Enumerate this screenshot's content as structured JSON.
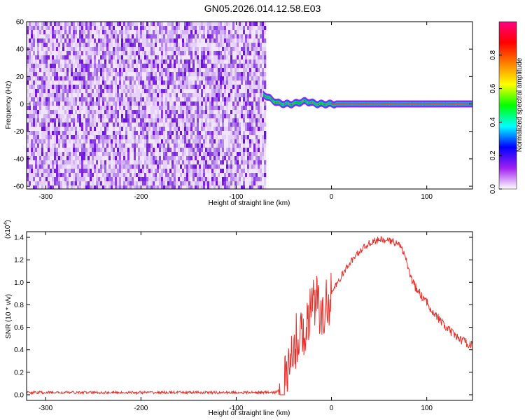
{
  "title": "GN05.2026.014.12.58.E03",
  "chart_data": [
    {
      "type": "heatmap",
      "xlabel": "Height of straight line (km)",
      "ylabel": "Frequency (Hz)",
      "xlim": [
        -320,
        148
      ],
      "ylim": [
        -62,
        60
      ],
      "xticks": [
        -300,
        -200,
        -100,
        0,
        100
      ],
      "yticks": [
        -60,
        -40,
        -20,
        0,
        20,
        40,
        60
      ],
      "noise_region_x": [
        -320,
        -70
      ],
      "tonal_line": {
        "x": [
          -72,
          -65,
          -58,
          -50,
          -42,
          -35,
          -28,
          -22,
          -15,
          -8,
          0,
          20,
          60,
          100,
          148
        ],
        "y": [
          7,
          4,
          1,
          0,
          0,
          1,
          2,
          1,
          0,
          0,
          0,
          0,
          0,
          0,
          0
        ]
      },
      "colorbar": {
        "label": "Normalized spectral amplitude",
        "range": [
          0,
          1
        ],
        "ticks": [
          "0.0",
          "0.2",
          "0.4",
          "0.6",
          "0.8"
        ],
        "ticks_values": [
          0,
          0.2,
          0.4,
          0.6,
          0.8
        ],
        "colors": [
          "#ffffff",
          "#a020f0",
          "#0000ff",
          "#00ffff",
          "#00ff00",
          "#ffff00",
          "#ff8000",
          "#ff0000",
          "#ff0080"
        ]
      }
    },
    {
      "type": "line",
      "xlabel": "Height of straight line (km)",
      "ylabel": "SNR (10 * v/v)",
      "multiplier": "(x10",
      "multiplier_exp": "4",
      "multiplier_close": ")",
      "xlim": [
        -320,
        148
      ],
      "ylim": [
        -0.05,
        1.45
      ],
      "xticks": [
        -300,
        -200,
        -100,
        0,
        100
      ],
      "yticks": [
        0.0,
        0.2,
        0.4,
        0.6,
        0.8,
        1.0,
        1.2,
        1.4
      ],
      "ytick_labels": [
        "0.0",
        "0.2",
        "0.4",
        "0.6",
        "0.8",
        "1.0",
        "1.2",
        "1.4"
      ],
      "series": [
        {
          "color": "#e8302a",
          "x": [
            -320,
            -200,
            -100,
            -60,
            -50,
            -45,
            -40,
            -35,
            -30,
            -25,
            -20,
            -15,
            -10,
            -5,
            0,
            10,
            20,
            30,
            40,
            50,
            60,
            70,
            75,
            80,
            85,
            90,
            100,
            110,
            120,
            130,
            140,
            148
          ],
          "y": [
            0.02,
            0.02,
            0.02,
            0.02,
            0.05,
            0.25,
            0.4,
            0.5,
            0.55,
            0.65,
            0.75,
            0.9,
            0.6,
            0.8,
            0.9,
            1.05,
            1.18,
            1.28,
            1.35,
            1.38,
            1.37,
            1.35,
            1.28,
            1.15,
            1.0,
            0.93,
            0.82,
            0.7,
            0.6,
            0.52,
            0.47,
            0.44
          ]
        }
      ]
    }
  ]
}
